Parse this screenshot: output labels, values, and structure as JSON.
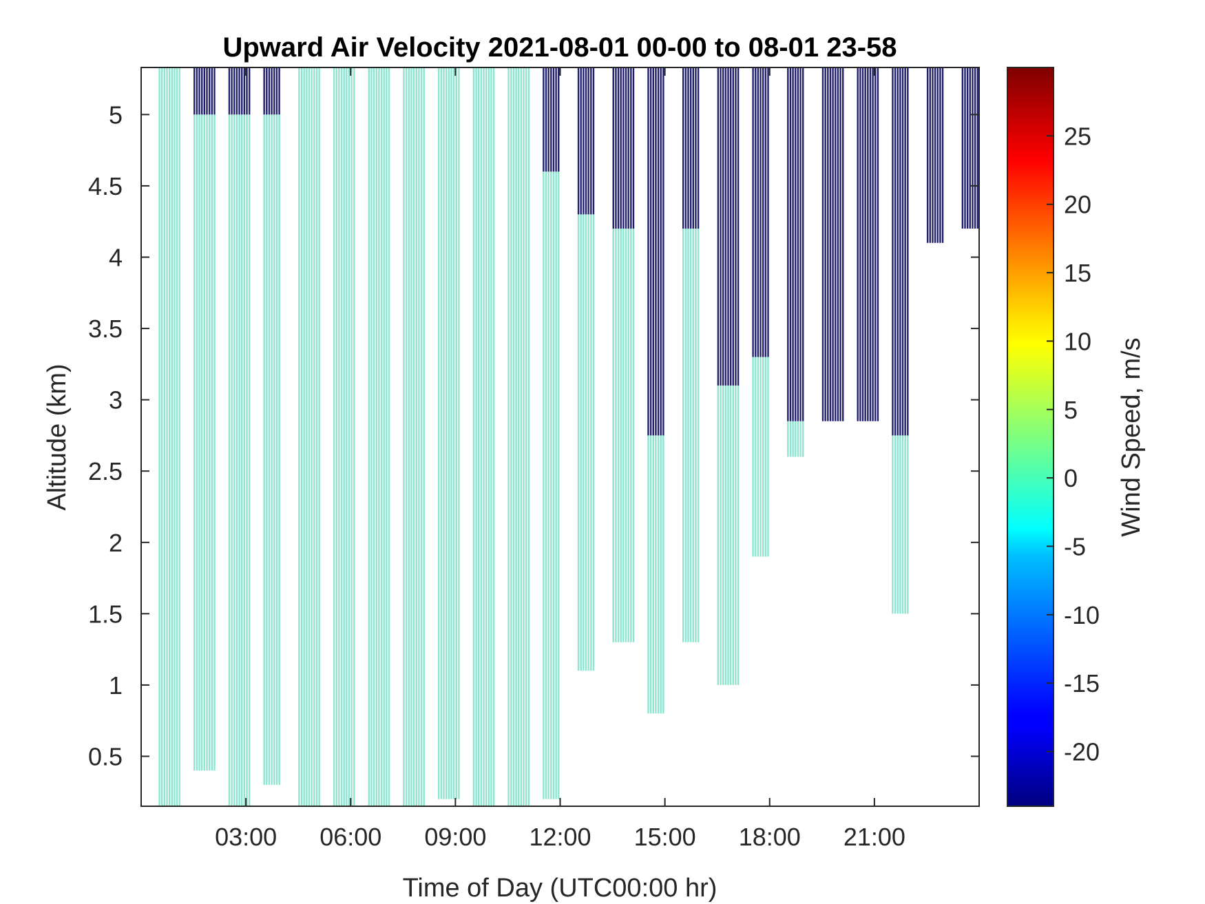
{
  "chart_data": {
    "type": "heatmap",
    "title": "Upward Air Velocity 2021-08-01 00-00 to 08-01 23-58",
    "xlabel": "Time of Day (UTC00:00 hr)",
    "ylabel": "Altitude (km)",
    "xlim": [
      0,
      24
    ],
    "ylim": [
      0.15,
      5.33
    ],
    "x_ticks": [
      {
        "value": 3,
        "label": "03:00"
      },
      {
        "value": 6,
        "label": "06:00"
      },
      {
        "value": 9,
        "label": "09:00"
      },
      {
        "value": 12,
        "label": "12:00"
      },
      {
        "value": 15,
        "label": "15:00"
      },
      {
        "value": 18,
        "label": "18:00"
      },
      {
        "value": 21,
        "label": "21:00"
      }
    ],
    "y_ticks": [
      {
        "value": 0.5,
        "label": "0.5"
      },
      {
        "value": 1,
        "label": "1"
      },
      {
        "value": 1.5,
        "label": "1.5"
      },
      {
        "value": 2,
        "label": "2"
      },
      {
        "value": 2.5,
        "label": "2.5"
      },
      {
        "value": 3,
        "label": "3"
      },
      {
        "value": 3.5,
        "label": "3.5"
      },
      {
        "value": 4,
        "label": "4"
      },
      {
        "value": 4.5,
        "label": "4.5"
      },
      {
        "value": 5,
        "label": "5"
      }
    ],
    "colorbar": {
      "label": "Wind Speed, m/s",
      "colormap": "jet",
      "range": [
        -24,
        30
      ],
      "ticks": [
        {
          "value": 25,
          "label": "25"
        },
        {
          "value": 20,
          "label": "20"
        },
        {
          "value": 15,
          "label": "15"
        },
        {
          "value": 10,
          "label": "10"
        },
        {
          "value": 5,
          "label": "5"
        },
        {
          "value": 0,
          "label": "0"
        },
        {
          "value": -5,
          "label": "-5"
        },
        {
          "value": -10,
          "label": "-10"
        },
        {
          "value": -15,
          "label": "-15"
        },
        {
          "value": -20,
          "label": "-20"
        }
      ]
    },
    "colors": {
      "near_zero": "#8fe6d0",
      "strong_down": "#1f1f6e"
    },
    "profile_blocks": [
      {
        "start": 0.5,
        "end": 1.1,
        "low_bottom": 0.15,
        "low_top": 5.33,
        "down_bottom": 5.33
      },
      {
        "start": 1.5,
        "end": 2.1,
        "low_bottom": 0.4,
        "low_top": 5.0,
        "down_bottom": 5.0
      },
      {
        "start": 2.5,
        "end": 3.1,
        "low_bottom": 0.15,
        "low_top": 5.0,
        "down_bottom": 5.0
      },
      {
        "start": 3.5,
        "end": 4.0,
        "low_bottom": 0.3,
        "low_top": 5.0,
        "down_bottom": 5.0
      },
      {
        "start": 4.5,
        "end": 5.1,
        "low_bottom": 0.15,
        "low_top": 5.33,
        "down_bottom": 5.33
      },
      {
        "start": 5.5,
        "end": 6.1,
        "low_bottom": 0.15,
        "low_top": 5.33,
        "down_bottom": 5.33
      },
      {
        "start": 6.5,
        "end": 7.1,
        "low_bottom": 0.15,
        "low_top": 5.33,
        "down_bottom": 5.33
      },
      {
        "start": 7.5,
        "end": 8.1,
        "low_bottom": 0.15,
        "low_top": 5.33,
        "down_bottom": 5.33
      },
      {
        "start": 8.5,
        "end": 9.1,
        "low_bottom": 0.2,
        "low_top": 5.33,
        "down_bottom": 5.33
      },
      {
        "start": 9.5,
        "end": 10.1,
        "low_bottom": 0.15,
        "low_top": 5.33,
        "down_bottom": 5.33
      },
      {
        "start": 10.5,
        "end": 11.1,
        "low_bottom": 0.15,
        "low_top": 5.33,
        "down_bottom": 5.33
      },
      {
        "start": 11.5,
        "end": 12.0,
        "low_bottom": 0.2,
        "low_top": 4.6,
        "down_bottom": 4.6
      },
      {
        "start": 12.5,
        "end": 13.0,
        "low_bottom": 1.1,
        "low_top": 4.3,
        "down_bottom": 4.3
      },
      {
        "start": 13.5,
        "end": 14.1,
        "low_bottom": 1.3,
        "low_top": 4.2,
        "down_bottom": 4.2
      },
      {
        "start": 14.5,
        "end": 15.0,
        "low_bottom": 0.8,
        "low_top": 2.75,
        "down_bottom": 2.75
      },
      {
        "start": 15.5,
        "end": 16.0,
        "low_bottom": 1.3,
        "low_top": 4.2,
        "down_bottom": 4.2
      },
      {
        "start": 16.5,
        "end": 17.1,
        "low_bottom": 1.0,
        "low_top": 3.1,
        "down_bottom": 3.1
      },
      {
        "start": 17.5,
        "end": 18.0,
        "low_bottom": 1.9,
        "low_top": 3.3,
        "down_bottom": 3.3
      },
      {
        "start": 18.5,
        "end": 19.0,
        "low_bottom": 2.6,
        "low_top": 2.85,
        "down_bottom": 2.85
      },
      {
        "start": 19.5,
        "end": 20.1,
        "low_bottom": 2.85,
        "low_top": 2.85,
        "down_bottom": 2.85
      },
      {
        "start": 20.5,
        "end": 21.1,
        "low_bottom": 2.85,
        "low_top": 2.85,
        "down_bottom": 2.85
      },
      {
        "start": 21.5,
        "end": 22.0,
        "low_bottom": 1.5,
        "low_top": 2.75,
        "down_bottom": 2.75
      },
      {
        "start": 22.5,
        "end": 23.0,
        "low_bottom": 4.1,
        "low_top": 4.1,
        "down_bottom": 4.1
      },
      {
        "start": 23.5,
        "end": 24.0,
        "low_bottom": 4.2,
        "low_top": 4.2,
        "down_bottom": 4.2
      }
    ]
  }
}
